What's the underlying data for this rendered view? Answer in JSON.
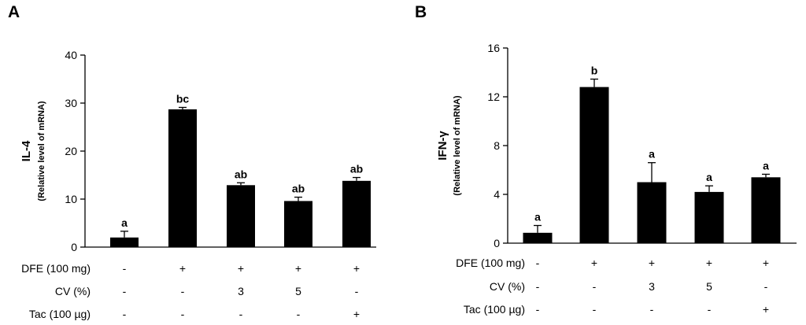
{
  "chart_data": [
    {
      "panel_letter": "A",
      "type": "bar",
      "ylabel": "IL-4",
      "ylabel_sub": "(Relative level of mRNA)",
      "ylim": [
        0,
        40
      ],
      "yticks": [
        "0",
        "10",
        "20",
        "30",
        "40"
      ],
      "ytick_values": [
        0,
        10,
        20,
        30,
        40
      ],
      "values": [
        2.0,
        28.7,
        12.9,
        9.6,
        13.8
      ],
      "errors": [
        1.3,
        0.4,
        0.5,
        0.8,
        0.7
      ],
      "significance": [
        "a",
        "bc",
        "ab",
        "ab",
        "ab"
      ],
      "bar_color": "#000000",
      "treatments": [
        {
          "name": "DFE (100 mg)",
          "values": [
            "-",
            "+",
            "+",
            "+",
            "+"
          ]
        },
        {
          "name": "CV (%)",
          "values": [
            "-",
            "-",
            "3",
            "5",
            "-"
          ]
        },
        {
          "name": "Tac (100 µg)",
          "values": [
            "-",
            "-",
            "-",
            "-",
            "+"
          ]
        }
      ]
    },
    {
      "panel_letter": "B",
      "type": "bar",
      "ylabel": "IFN-γ",
      "ylabel_sub": "(Relative level of mRNA)",
      "ylim": [
        0,
        16
      ],
      "yticks": [
        "0",
        "4",
        "8",
        "12",
        "16"
      ],
      "ytick_values": [
        0,
        4,
        8,
        12,
        16
      ],
      "values": [
        0.85,
        12.8,
        5.0,
        4.2,
        5.4
      ],
      "errors": [
        0.6,
        0.65,
        1.6,
        0.5,
        0.25
      ],
      "significance": [
        "a",
        "b",
        "a",
        "a",
        "a"
      ],
      "bar_color": "#000000",
      "treatments": [
        {
          "name": "DFE (100 mg)",
          "values": [
            "-",
            "+",
            "+",
            "+",
            "+"
          ]
        },
        {
          "name": "CV (%)",
          "values": [
            "-",
            "-",
            "3",
            "5",
            "-"
          ]
        },
        {
          "name": "Tac (100 µg)",
          "values": [
            "-",
            "-",
            "-",
            "-",
            "+"
          ]
        }
      ]
    }
  ]
}
